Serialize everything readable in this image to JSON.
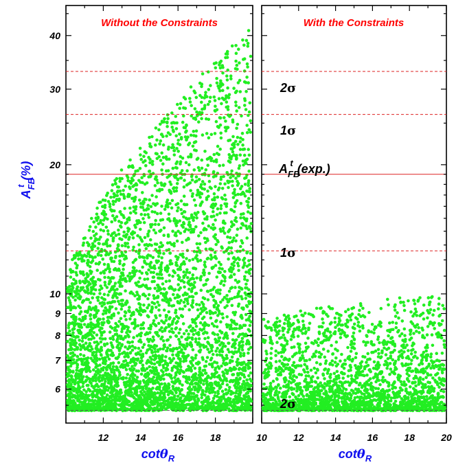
{
  "chart_data": [
    {
      "type": "scatter",
      "title": "Without the Constraints",
      "xlabel": "cotθ_R",
      "ylabel": "A_FB^t(%)",
      "xlim": [
        10,
        20
      ],
      "ylim": [
        5.0,
        47.0
      ],
      "yscale": "log",
      "xticks": [
        "12",
        "14",
        "16",
        "18"
      ],
      "yticks": [
        "6",
        "7",
        "8",
        "9",
        "10",
        "20",
        "30",
        "40"
      ],
      "ytick_values": [
        6,
        7,
        8,
        9,
        10,
        20,
        30,
        40
      ],
      "point_color": "#22ee22",
      "reference_lines": [
        {
          "y": 33.0,
          "style": "dashed",
          "color": "#dd2222"
        },
        {
          "y": 26.2,
          "style": "dashed",
          "color": "#dd2222"
        },
        {
          "y": 19.0,
          "style": "solid",
          "color": "#dd2222"
        },
        {
          "y": 12.6,
          "style": "dashed",
          "color": "#dd2222"
        },
        {
          "y": 5.35,
          "style": "dashed",
          "color": "#555555"
        }
      ],
      "envelope": {
        "y_min": 5.3,
        "y_max_at_x": [
          [
            10.0,
            11.0
          ],
          [
            12,
            17
          ],
          [
            14,
            22
          ],
          [
            16,
            28
          ],
          [
            18,
            35
          ],
          [
            20,
            42
          ]
        ]
      },
      "n_points": 5200
    },
    {
      "type": "scatter",
      "title": "With the Constraints",
      "xlabel": "cotθ_R",
      "ylabel": "",
      "xlim": [
        10,
        20
      ],
      "ylim": [
        5.0,
        47.0
      ],
      "yscale": "log",
      "xticks": [
        "10",
        "12",
        "14",
        "16",
        "18",
        "20"
      ],
      "point_color": "#22ee22",
      "reference_lines": [
        {
          "y": 33.0,
          "style": "dashed",
          "color": "#dd2222"
        },
        {
          "y": 26.2,
          "style": "dashed",
          "color": "#dd2222"
        },
        {
          "y": 19.0,
          "style": "solid",
          "color": "#dd2222"
        },
        {
          "y": 12.6,
          "style": "dashed",
          "color": "#dd2222"
        },
        {
          "y": 5.35,
          "style": "dashed",
          "color": "#555555"
        }
      ],
      "annotations": [
        {
          "text": "2σ",
          "y": 31.2
        },
        {
          "text": "1σ",
          "y": 24.6
        },
        {
          "text": "A_FB^t(exp.)",
          "y": 19.7
        },
        {
          "text": "1σ",
          "y": 13.3
        },
        {
          "text": "2σ",
          "y": 5.5
        }
      ],
      "envelope": {
        "y_min": 5.3,
        "y_max": 11.2
      },
      "n_points": 3800
    }
  ]
}
